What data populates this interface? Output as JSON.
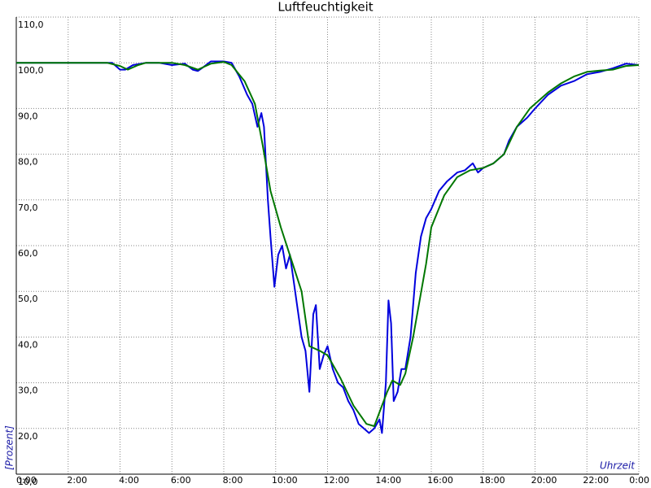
{
  "chart_data": {
    "type": "line",
    "title": "Luftfeuchtigkeit",
    "x_label": "Uhrzeit",
    "y_label": "[Prozent]",
    "xlim": [
      0,
      24
    ],
    "xticks": [
      {
        "value": 0,
        "label": "0:00"
      },
      {
        "value": 2,
        "label": "2:00"
      },
      {
        "value": 4,
        "label": "4:00"
      },
      {
        "value": 6,
        "label": "6:00"
      },
      {
        "value": 8,
        "label": "8:00"
      },
      {
        "value": 10,
        "label": "10:00"
      },
      {
        "value": 12,
        "label": "12:00"
      },
      {
        "value": 14,
        "label": "14:00"
      },
      {
        "value": 16,
        "label": "16:00"
      },
      {
        "value": 18,
        "label": "18:00"
      },
      {
        "value": 20,
        "label": "20:00"
      },
      {
        "value": 22,
        "label": "22:00"
      },
      {
        "value": 24,
        "label": "0:00"
      }
    ],
    "ylim": [
      10,
      110
    ],
    "yticks": [
      {
        "value": 10,
        "label": "10,0"
      },
      {
        "value": 20,
        "label": "20,0"
      },
      {
        "value": 30,
        "label": "30,0"
      },
      {
        "value": 40,
        "label": "40,0"
      },
      {
        "value": 50,
        "label": "50,0"
      },
      {
        "value": 60,
        "label": "60,0"
      },
      {
        "value": 70,
        "label": "70,0"
      },
      {
        "value": 80,
        "label": "80,0"
      },
      {
        "value": 90,
        "label": "90,0"
      },
      {
        "value": 100,
        "label": "100,0"
      },
      {
        "value": 110,
        "label": "110,0"
      }
    ],
    "grid": true,
    "series": [
      {
        "color": "#0000dd",
        "x": [
          0,
          3.5,
          3.7,
          4.0,
          4.2,
          4.5,
          5,
          5.5,
          6,
          6.5,
          6.8,
          7.0,
          7.2,
          7.5,
          8,
          8.3,
          8.6,
          8.9,
          9.1,
          9.3,
          9.45,
          9.55,
          9.7,
          9.8,
          9.95,
          10.1,
          10.25,
          10.4,
          10.55,
          10.7,
          11.0,
          11.15,
          11.3,
          11.45,
          11.55,
          11.7,
          11.85,
          12.0,
          12.2,
          12.4,
          12.6,
          12.8,
          13.0,
          13.2,
          13.4,
          13.6,
          13.8,
          14.0,
          14.1,
          14.25,
          14.35,
          14.45,
          14.55,
          14.7,
          14.85,
          15.0,
          15.2,
          15.4,
          15.6,
          15.8,
          16.0,
          16.3,
          16.6,
          17.0,
          17.3,
          17.6,
          17.8,
          18.0,
          18.4,
          18.8,
          19.0,
          19.3,
          19.7,
          20.0,
          20.5,
          21.0,
          21.5,
          22.0,
          22.5,
          23.0,
          23.5,
          24
        ],
        "values": [
          100,
          100,
          100,
          98.5,
          98.5,
          99.5,
          100,
          100,
          99.5,
          99.8,
          98.5,
          98.2,
          99,
          100.3,
          100.3,
          100,
          97,
          93,
          91,
          86,
          89,
          86,
          70,
          62,
          51,
          58,
          60,
          55,
          58,
          52,
          40,
          37,
          28,
          45,
          47,
          33,
          36,
          38,
          33,
          30,
          29,
          26,
          24,
          21,
          20,
          19,
          20,
          22,
          19,
          30,
          48,
          43,
          26,
          28,
          33,
          33,
          40,
          54,
          62,
          66,
          68,
          72,
          74,
          76,
          76.5,
          78,
          76,
          77,
          78,
          80,
          83,
          86,
          88,
          90,
          93,
          95,
          96,
          97.5,
          98,
          98.8,
          99.8,
          99.5
        ]
      },
      {
        "color": "#007700",
        "x": [
          0,
          3.5,
          4,
          4.3,
          4.7,
          5,
          6,
          6.5,
          7,
          7.5,
          8,
          8.3,
          8.8,
          9.2,
          9.5,
          9.8,
          10.2,
          10.6,
          11.0,
          11.3,
          11.7,
          12.0,
          12.5,
          13.0,
          13.5,
          13.8,
          14.1,
          14.3,
          14.5,
          14.8,
          15.0,
          15.3,
          15.8,
          16.0,
          16.5,
          17.0,
          17.5,
          18.0,
          18.4,
          18.8,
          19.3,
          19.8,
          20.5,
          21.0,
          21.5,
          22.0,
          22.5,
          23.0,
          23.5,
          24
        ],
        "values": [
          100,
          100,
          99.3,
          98.5,
          99.5,
          100,
          100,
          99.5,
          98.5,
          99.8,
          100.2,
          99.5,
          96,
          91,
          82,
          72,
          64,
          57,
          50,
          38,
          37,
          36,
          31,
          25,
          21,
          20.5,
          25,
          28,
          30.5,
          29.5,
          32,
          40,
          56,
          64,
          71,
          75,
          76.5,
          77,
          78,
          80,
          86,
          90,
          93.5,
          95.5,
          97,
          98,
          98.3,
          98.5,
          99.3,
          99.5
        ]
      }
    ]
  }
}
